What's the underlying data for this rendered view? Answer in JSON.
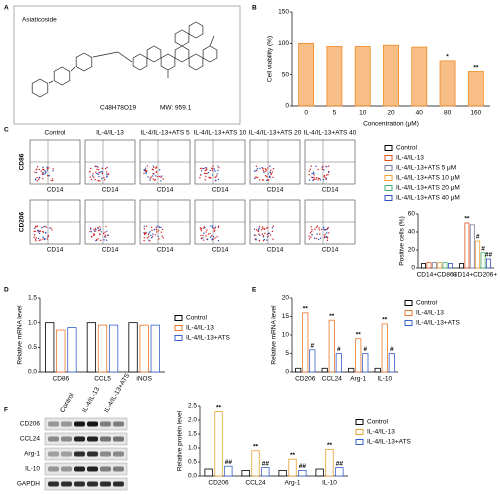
{
  "panel_a": {
    "letter": "A",
    "title": "Asiaticoside",
    "formula": "C48H78O19",
    "mw": "MW: 959.1"
  },
  "panel_c_flow": {
    "letter": "C",
    "columns": [
      "Control",
      "IL-4/IL-13",
      "IL-4/IL-13+ATS 5",
      "IL-4/IL-13+ATS 10",
      "IL-4/IL-13+ATS 20",
      "IL-4/IL-13+ATS 40"
    ],
    "rows": [
      "CD86",
      "CD206"
    ],
    "x_label": "CD14"
  },
  "panel_f_blot": {
    "letter": "F",
    "columns": [
      "Control",
      "IL-4/IL-13",
      "IL-4/IL-13+ATS"
    ],
    "rows": [
      "CD206",
      "CCL24",
      "Arg-1",
      "IL-10",
      "GAPDH"
    ]
  },
  "chart_data": [
    {
      "type": "bar",
      "panel": "B",
      "y_label": "Cell viability (%)",
      "x_label": "Concentration (μM)",
      "categories": [
        "0",
        "5",
        "10",
        "20",
        "40",
        "80",
        "160"
      ],
      "values": [
        100,
        95,
        95,
        97,
        94,
        72,
        55
      ],
      "annotations": [
        null,
        null,
        null,
        null,
        null,
        "*",
        "**"
      ],
      "color": "#f08a24",
      "bar_fill": "solid",
      "ylim": [
        0,
        150
      ],
      "yticks": [
        0,
        50,
        100,
        150
      ]
    },
    {
      "type": "bar",
      "y_label": "Positive cells (%)",
      "categories": [
        "CD14+CD86+",
        "CD14+CD206+"
      ],
      "series": [
        {
          "name": "Control",
          "color": "#000000",
          "values": [
            5,
            5
          ],
          "annotations": [
            null,
            null
          ]
        },
        {
          "name": "IL-4/IL-13",
          "color": "#e8501e",
          "values": [
            6,
            50
          ],
          "annotations": [
            null,
            "**"
          ]
        },
        {
          "name": "IL-4/IL-13+ATS 5 μM",
          "color": "#7a7aa0",
          "values": [
            6,
            48
          ],
          "annotations": [
            null,
            null
          ]
        },
        {
          "name": "IL-4/IL-13+ATS 10 μM",
          "color": "#f0a030",
          "values": [
            6,
            30
          ],
          "annotations": [
            null,
            "#"
          ]
        },
        {
          "name": "IL-4/IL-13+ATS 20 μM",
          "color": "#3cb371",
          "values": [
            6,
            17
          ],
          "annotations": [
            null,
            "#"
          ]
        },
        {
          "name": "IL-4/IL-13+ATS 40 μM",
          "color": "#3050c0",
          "values": [
            5,
            10
          ],
          "annotations": [
            null,
            "##"
          ]
        }
      ],
      "bar_fill": "outline",
      "ylim": [
        0,
        60
      ],
      "yticks": [
        0,
        20,
        40,
        60
      ]
    },
    {
      "type": "bar",
      "panel": "D",
      "y_label": "Relative mRNA level",
      "categories": [
        "CD86",
        "CCL5",
        "iNOS"
      ],
      "series": [
        {
          "name": "Control",
          "color": "#000000",
          "values": [
            1,
            1,
            1
          ]
        },
        {
          "name": "IL-4/IL-13",
          "color": "#e8762c",
          "values": [
            0.85,
            0.95,
            0.95
          ]
        },
        {
          "name": "IL-4/IL-13+ATS",
          "color": "#3a5fcd",
          "values": [
            0.9,
            0.95,
            0.95
          ]
        }
      ],
      "bar_fill": "outline",
      "ylim": [
        0,
        1.5
      ],
      "yticks": [
        {
          "value": 0,
          "label": "0.0"
        },
        0.5,
        {
          "value": 1,
          "label": "1.0"
        },
        1.5
      ]
    },
    {
      "type": "bar",
      "panel": "E",
      "y_label": "Relative mRNA level",
      "categories": [
        "CD206",
        "CCL24",
        "Arg-1",
        "IL-10"
      ],
      "series": [
        {
          "name": "Control",
          "color": "#000000",
          "values": [
            1,
            1,
            1,
            1
          ]
        },
        {
          "name": "IL-4/IL-13",
          "color": "#e8762c",
          "values": [
            16,
            14,
            9,
            13
          ],
          "annotations": [
            "**",
            "**",
            "**",
            "**"
          ]
        },
        {
          "name": "IL-4/IL-13+ATS",
          "color": "#3a5fcd",
          "values": [
            6,
            5,
            5,
            5
          ],
          "annotations": [
            "#",
            "#",
            "#",
            "#"
          ]
        }
      ],
      "bar_fill": "outline",
      "ylim": [
        0,
        20
      ],
      "yticks": [
        0,
        5,
        10,
        15,
        20
      ]
    },
    {
      "type": "bar",
      "y_label": "Relative protein level",
      "categories": [
        "CD206",
        "CCL24",
        "Arg-1",
        "IL-10"
      ],
      "series": [
        {
          "name": "Control",
          "color": "#000000",
          "values": [
            0.25,
            0.2,
            0.2,
            0.25
          ]
        },
        {
          "name": "IL-4/IL-13",
          "color": "#e8a030",
          "values": [
            2.3,
            0.9,
            0.6,
            0.95
          ],
          "annotations": [
            "**",
            "**",
            "**",
            "**"
          ]
        },
        {
          "name": "IL-4/IL-13+ATS",
          "color": "#3a5fcd",
          "values": [
            0.35,
            0.3,
            0.2,
            0.3
          ],
          "annotations": [
            "##",
            "##",
            "##",
            "##"
          ]
        }
      ],
      "bar_fill": "outline",
      "ylim": [
        0,
        2.5
      ],
      "yticks": [
        {
          "value": 0,
          "label": "0.0"
        },
        0.5,
        {
          "value": 1,
          "label": "1.0"
        },
        1.5,
        {
          "value": 2,
          "label": "2.0"
        },
        2.5
      ]
    }
  ]
}
